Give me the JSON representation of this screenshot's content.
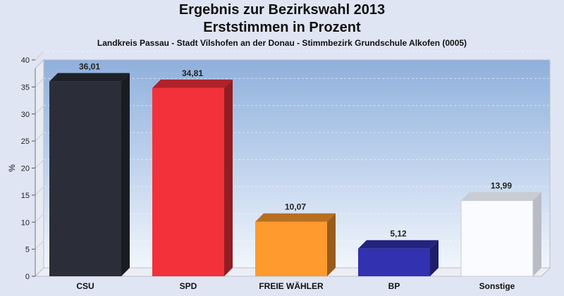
{
  "title": "Ergebnis zur Bezirkswahl 2013",
  "subtitle_line2": "Erststimmen in Prozent",
  "subtitle": "Landkreis Passau - Stadt Vilshofen an der Donau - Stimmbezirk Grundschule Alkofen (0005)",
  "chart_data": {
    "type": "bar",
    "title": "Ergebnis zur Bezirkswahl 2013",
    "subtitle": "Erststimmen in Prozent",
    "xlabel": "",
    "ylabel": "%",
    "categories": [
      "CSU",
      "SPD",
      "FREIE WÄHLER",
      "BP",
      "Sonstige"
    ],
    "values": [
      36.01,
      34.81,
      10.07,
      5.12,
      13.99
    ],
    "value_labels": [
      "36,01",
      "34,81",
      "10,07",
      "5,12",
      "13,99"
    ],
    "colors": [
      "#2b2e38",
      "#f2313a",
      "#fe9a2e",
      "#3232b0",
      "#fafbff"
    ],
    "ylim": [
      0,
      40
    ],
    "yticks": [
      0,
      5,
      10,
      15,
      20,
      25,
      30,
      35,
      40
    ],
    "grid": true,
    "legend": "none"
  }
}
